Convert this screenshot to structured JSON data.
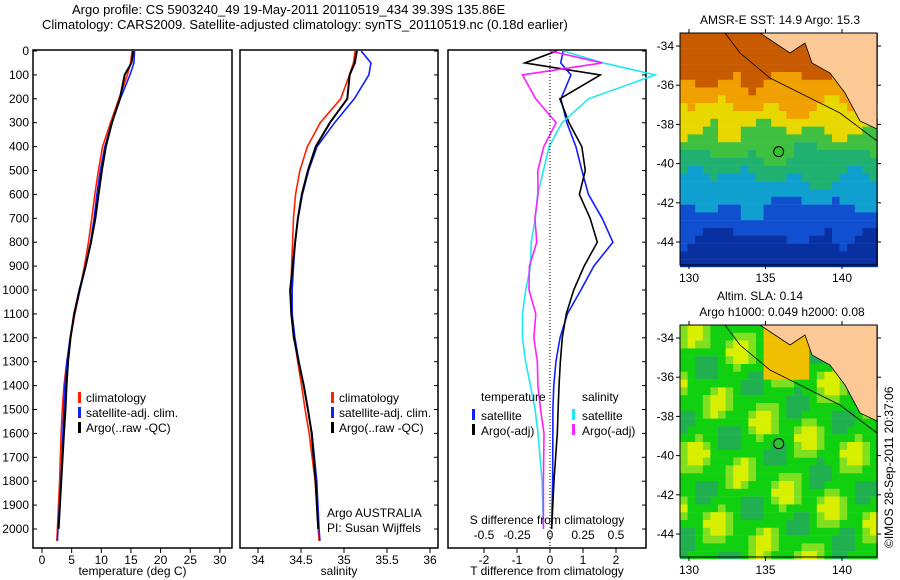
{
  "header": {
    "line1": "Argo profile: CS 5903240_49 19-May-2011 20110519_434 39.39S 135.86E",
    "line2": "Climatology: CARS2009. Satellite-adjusted climatology: synTS_20110519.nc (0.18d earlier)"
  },
  "colors": {
    "climatology": "#ff2000",
    "satellite": "#1020ff",
    "argo": "#000000",
    "s_satellite": "#20e8f0",
    "s_argo": "#ff20ff",
    "land": "#fcc896"
  },
  "chart_data": [
    {
      "type": "line",
      "xlabel": "temperature (deg C)",
      "ylabel": "depth",
      "xlim": [
        -2,
        31
      ],
      "ylim": [
        2060,
        0
      ],
      "xticks": [
        0,
        5,
        10,
        15,
        20,
        25,
        30
      ],
      "yticks": [
        0,
        100,
        200,
        300,
        400,
        500,
        600,
        700,
        800,
        900,
        1000,
        1100,
        1200,
        1300,
        1400,
        1500,
        1600,
        1700,
        1800,
        1900,
        2000
      ],
      "depth": [
        0,
        50,
        100,
        200,
        300,
        400,
        500,
        600,
        700,
        800,
        900,
        1000,
        1100,
        1200,
        1300,
        1400,
        1500,
        1600,
        1800,
        2000,
        2050
      ],
      "series": [
        {
          "name": "climatology",
          "color": "#ff2000",
          "values": [
            15.2,
            14.8,
            14.2,
            12.8,
            11.5,
            10.3,
            9.7,
            9.1,
            8.5,
            7.8,
            7.0,
            6.2,
            5.4,
            4.8,
            4.3,
            3.9,
            3.6,
            3.3,
            2.9,
            2.6,
            2.5
          ]
        },
        {
          "name": "satellite-adj. clim.",
          "color": "#1020ff",
          "values": [
            15.6,
            15.3,
            14.7,
            13.2,
            11.9,
            10.8,
            10.0,
            9.3,
            8.7,
            8.0,
            7.2,
            6.3,
            5.5,
            4.9,
            4.4,
            4.0,
            3.7,
            3.4,
            3.0,
            2.7,
            2.6
          ]
        },
        {
          "name": "Argo(..raw -QC)",
          "color": "#000000",
          "values": [
            15.4,
            15.0,
            14.0,
            13.3,
            12.0,
            10.9,
            10.1,
            9.4,
            8.8,
            8.1,
            7.3,
            6.4,
            5.6,
            5.0,
            4.5,
            4.1,
            3.8,
            3.5,
            3.1,
            2.8,
            null
          ]
        }
      ],
      "legend": [
        "climatology",
        "satellite-adj. clim.",
        "Argo(..raw -QC)"
      ]
    },
    {
      "type": "line",
      "xlabel": "salinity",
      "xlim": [
        33.9,
        36.05
      ],
      "ylim": [
        2060,
        0
      ],
      "xticks": [
        34,
        34.5,
        35,
        35.5,
        36
      ],
      "depth": [
        0,
        50,
        100,
        200,
        300,
        400,
        500,
        600,
        700,
        800,
        900,
        1000,
        1100,
        1200,
        1300,
        1400,
        1500,
        1600,
        1800,
        2000,
        2050
      ],
      "series": [
        {
          "name": "climatology",
          "color": "#ff2000",
          "values": [
            35.13,
            35.1,
            35.05,
            34.95,
            34.72,
            34.58,
            34.5,
            34.45,
            34.42,
            34.4,
            34.38,
            34.37,
            34.38,
            34.42,
            34.47,
            34.52,
            34.56,
            34.6,
            34.66,
            34.7,
            34.71
          ]
        },
        {
          "name": "satellite-adj. clim.",
          "color": "#1020ff",
          "values": [
            35.2,
            35.3,
            35.28,
            35.12,
            34.9,
            34.7,
            34.6,
            34.52,
            34.46,
            34.42,
            34.4,
            34.39,
            34.4,
            34.44,
            34.49,
            34.54,
            34.58,
            34.62,
            34.67,
            34.71,
            34.72
          ]
        },
        {
          "name": "Argo(..raw -QC)",
          "color": "#000000",
          "values": [
            35.15,
            35.12,
            35.07,
            35.05,
            34.85,
            34.68,
            34.58,
            34.5,
            34.45,
            34.42,
            34.4,
            34.38,
            34.4,
            34.43,
            34.48,
            34.53,
            34.57,
            34.61,
            34.66,
            34.7,
            null
          ]
        }
      ],
      "legend": [
        "climatology",
        "satellite-adj. clim.",
        "Argo(..raw -QC)"
      ],
      "annotation": [
        "Argo AUSTRALIA",
        "PI: Susan Wijffels"
      ]
    },
    {
      "type": "line",
      "xlabel": "T difference from climatology",
      "x2label": "S difference from climatology",
      "xlim": [
        -2.8,
        3.0
      ],
      "xticks": [
        -2,
        -1,
        0,
        1,
        2
      ],
      "x2ticks": [
        "-0.5",
        "-0.25",
        "0",
        "0.25",
        "0.5"
      ],
      "ylim": [
        2060,
        0
      ],
      "depth": [
        0,
        50,
        100,
        200,
        300,
        400,
        500,
        600,
        700,
        800,
        900,
        1000,
        1100,
        1200,
        1300,
        1400,
        1500,
        1600,
        1800,
        2000
      ],
      "series": [
        {
          "name": "temperature satellite",
          "color": "#1020ff",
          "values": [
            0.4,
            0.3,
            0.6,
            0.3,
            0.5,
            0.8,
            1.0,
            1.2,
            1.6,
            1.9,
            1.3,
            0.9,
            0.5,
            0.3,
            0.2,
            0.15,
            0.12,
            0.1,
            0.08,
            0.05
          ]
        },
        {
          "name": "temperature Argo(-adj)",
          "color": "#000000",
          "values": [
            0.2,
            -0.8,
            1.5,
            0.3,
            0.6,
            1.0,
            1.1,
            0.9,
            1.2,
            1.4,
            1.0,
            0.7,
            0.5,
            0.4,
            0.35,
            0.3,
            0.25,
            0.2,
            0.12,
            0.05
          ]
        },
        {
          "name": "salinity satellite",
          "color": "#20e8f0",
          "values": [
            0.1,
            0.4,
            0.8,
            0.3,
            0.1,
            0.0,
            -0.05,
            -0.1,
            -0.12,
            -0.15,
            -0.15,
            -0.18,
            -0.2,
            -0.2,
            -0.18,
            -0.15,
            -0.12,
            -0.1,
            -0.06,
            -0.05
          ]
        },
        {
          "name": "salinity Argo(-adj)",
          "color": "#ff20ff",
          "values": [
            0.0,
            0.4,
            -0.2,
            -0.1,
            0.05,
            -0.05,
            -0.1,
            -0.1,
            -0.12,
            -0.1,
            -0.15,
            -0.15,
            -0.1,
            -0.12,
            -0.1,
            -0.1,
            -0.08,
            -0.05,
            -0.05,
            -0.05
          ]
        }
      ],
      "legend": {
        "temperature_title": "temperature",
        "salinity_title": "salinity",
        "satellite": "satellite",
        "argo": "Argo(-adj)"
      }
    },
    {
      "type": "heatmap",
      "title": "AMSR-E SST: 14.9 Argo: 15.3",
      "xticks": [
        130,
        135,
        140
      ],
      "yticks": [
        -34,
        -36,
        -38,
        -40,
        -42,
        -44
      ],
      "marker": [
        135.86,
        -39.39
      ]
    },
    {
      "type": "heatmap",
      "title1": "Altim. SLA: 0.14",
      "title2": "Argo h1000: 0.049 h2000: 0.08",
      "xticks": [
        130,
        135,
        140
      ],
      "yticks": [
        -34,
        -36,
        -38,
        -40,
        -42,
        -44
      ],
      "marker": [
        135.86,
        -39.39
      ],
      "credit": "©IMOS 28-Sep-2011 20:37:06"
    }
  ]
}
